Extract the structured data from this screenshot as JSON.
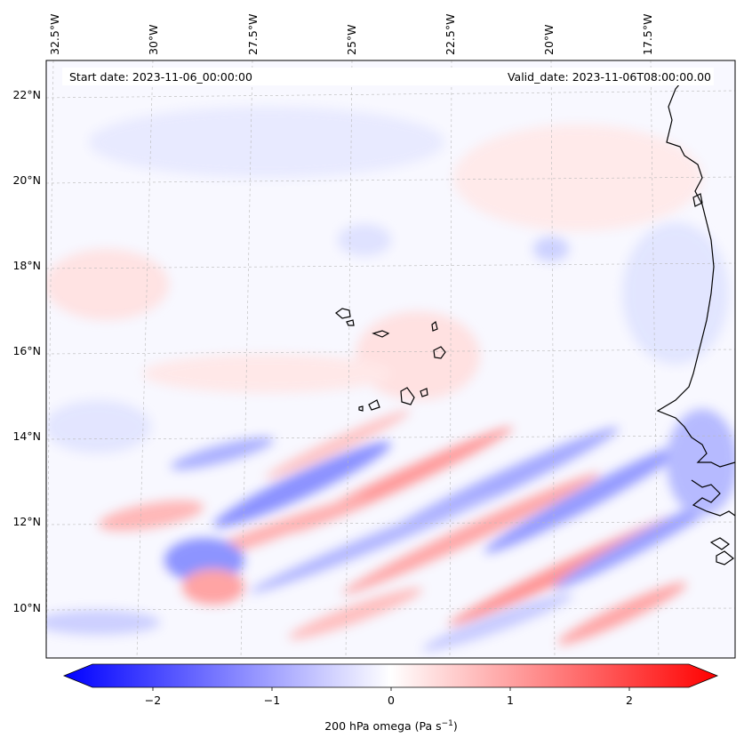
{
  "map": {
    "start_label": "Start date: 2023-11-06_00:00:00",
    "valid_label": "Valid_date: 2023-11-06T08:00:00.00",
    "lon_labels": [
      "32.5°W",
      "30°W",
      "27.5°W",
      "25°W",
      "22.5°W",
      "20°W",
      "17.5°W"
    ],
    "lat_labels": [
      "22°N",
      "20°N",
      "18°N",
      "16°N",
      "14°N",
      "12°N",
      "10°N"
    ],
    "field": "200 hPa omega",
    "extent": {
      "lon_min": -33.2,
      "lon_max": -15.2,
      "lat_min": 8.8,
      "lat_max": 22.7
    }
  },
  "colorbar": {
    "tick_labels": [
      "−2",
      "−1",
      "0",
      "1",
      "2"
    ],
    "tick_values": [
      -2,
      -1,
      0,
      1,
      2
    ],
    "range": [
      -2.5,
      2.5
    ],
    "label_main": "200 hPa omega (Pa s",
    "label_sup": "−1",
    "label_end": ")",
    "colors": {
      "negative": "#0000ff",
      "zero": "#ffffff",
      "positive": "#ff0000"
    }
  }
}
